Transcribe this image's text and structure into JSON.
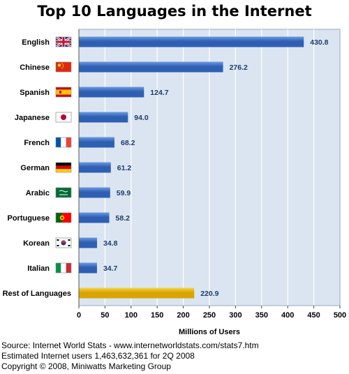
{
  "chart_data": {
    "type": "bar",
    "orientation": "horizontal",
    "title": "Top 10 Languages in the Internet",
    "xlabel": "Millions of Users",
    "ylabel": "",
    "xlim": [
      0,
      500
    ],
    "xticks": [
      "0",
      "50",
      "100",
      "150",
      "200",
      "250",
      "300",
      "350",
      "400",
      "450",
      "500"
    ],
    "grid": true,
    "legend": "none",
    "categories": [
      "English",
      "Chinese",
      "Spanish",
      "Japanese",
      "French",
      "German",
      "Arabic",
      "Portuguese",
      "Korean",
      "Italian",
      "Rest of Languages"
    ],
    "values": [
      430.8,
      276.2,
      124.7,
      94.0,
      68.2,
      61.2,
      59.9,
      58.2,
      34.8,
      34.7,
      220.9
    ],
    "value_labels": [
      "430.8",
      "276.2",
      "124.7",
      "94.0",
      "68.2",
      "61.2",
      "59.9",
      "58.2",
      "34.8",
      "34.7",
      "220.9"
    ],
    "flag_icons": [
      "uk-flag-icon",
      "china-flag-icon",
      "spain-flag-icon",
      "japan-flag-icon",
      "france-flag-icon",
      "germany-flag-icon",
      "saudi-arabia-flag-icon",
      "portugal-flag-icon",
      "south-korea-flag-icon",
      "italy-flag-icon",
      ""
    ],
    "colors": {
      "bar": "#2f5fb3",
      "bar_highlight": "#6e9be0",
      "rest_bar": "#d9a400",
      "rest_bar_highlight": "#f6d34a",
      "plot_background": "#dbe5f1",
      "grid": "#ffffff",
      "value_label": "#1f3a6b"
    }
  },
  "footer": {
    "source": "Source: Internet World Stats - www.internetworldstats.com/stats7.htm",
    "estimate": "Estimated Internet users 1,463,632,361 for 2Q 2008",
    "copyright": "Copyright © 2008, Miniwatts Marketing Group"
  }
}
